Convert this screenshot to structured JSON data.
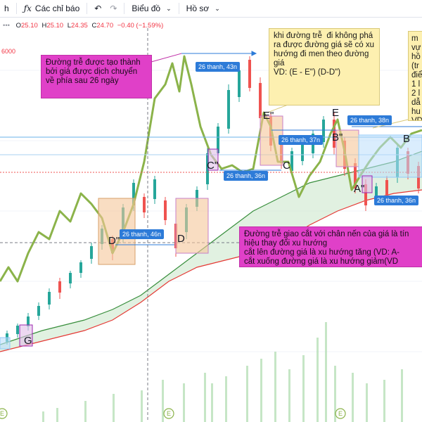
{
  "toolbar": {
    "partial_label": "h",
    "indicators_icon": "fx-icon",
    "indicators_label": "Các chỉ báo",
    "undo_icon": "undo-icon",
    "redo_icon": "redo-icon",
    "chart_type_label": "Biểu đồ",
    "profile_label": "Hồ sơ"
  },
  "legend": {
    "o_label": "O",
    "o_value": "25.10",
    "h_label": "H",
    "h_value": "25.10",
    "l_label": "L",
    "l_value": "24.35",
    "c_label": "C",
    "c_value": "24.70",
    "change": "−0.40 (−1.59%)"
  },
  "axis_fragment": "6000",
  "callouts": {
    "lag_shift": "Đường trễ được tạo thành bởi giá được dịch chuyển về phía sau 26 ngày",
    "breakout": "khi đường trễ  đi không phá ra được đường giá sẽ có xu hướng đi men theo đường giá\nVD: (E - E\") (D-D\")",
    "right_partial": "m\nvự\nhồ\n(tr\nđiể\n1 l\n2 l\ndẫ\nhu\nVD",
    "crossing": "Đường trễ giao cắt với chân nến của giá là tín hiệu thay đổi xu hướng\ncắt lên đường giá là xu hướng tăng (VD: A-\ncắt xuống đường giá là xu hướng giảm(VD"
  },
  "period_labels": [
    "26 thanh, 43n",
    "26 thanh, 37n",
    "26 thanh, 38n",
    "26 thanh, 36n",
    "26 thanh, 36n",
    "26 thanh, 46n"
  ],
  "points": {
    "G": "G",
    "D2": "D\"",
    "D": "D",
    "C2": "C\"",
    "C": "C",
    "E2": "E\"",
    "E": "E",
    "B2": "B\"",
    "B": "B",
    "A2": "A\""
  },
  "colors": {
    "up": "#26a69a",
    "down": "#ef5350",
    "lagging_span": "#8bb34a",
    "cloud": "#a5d6a7",
    "cloud_line": "#388e3c",
    "base_red": "#e53935"
  }
}
